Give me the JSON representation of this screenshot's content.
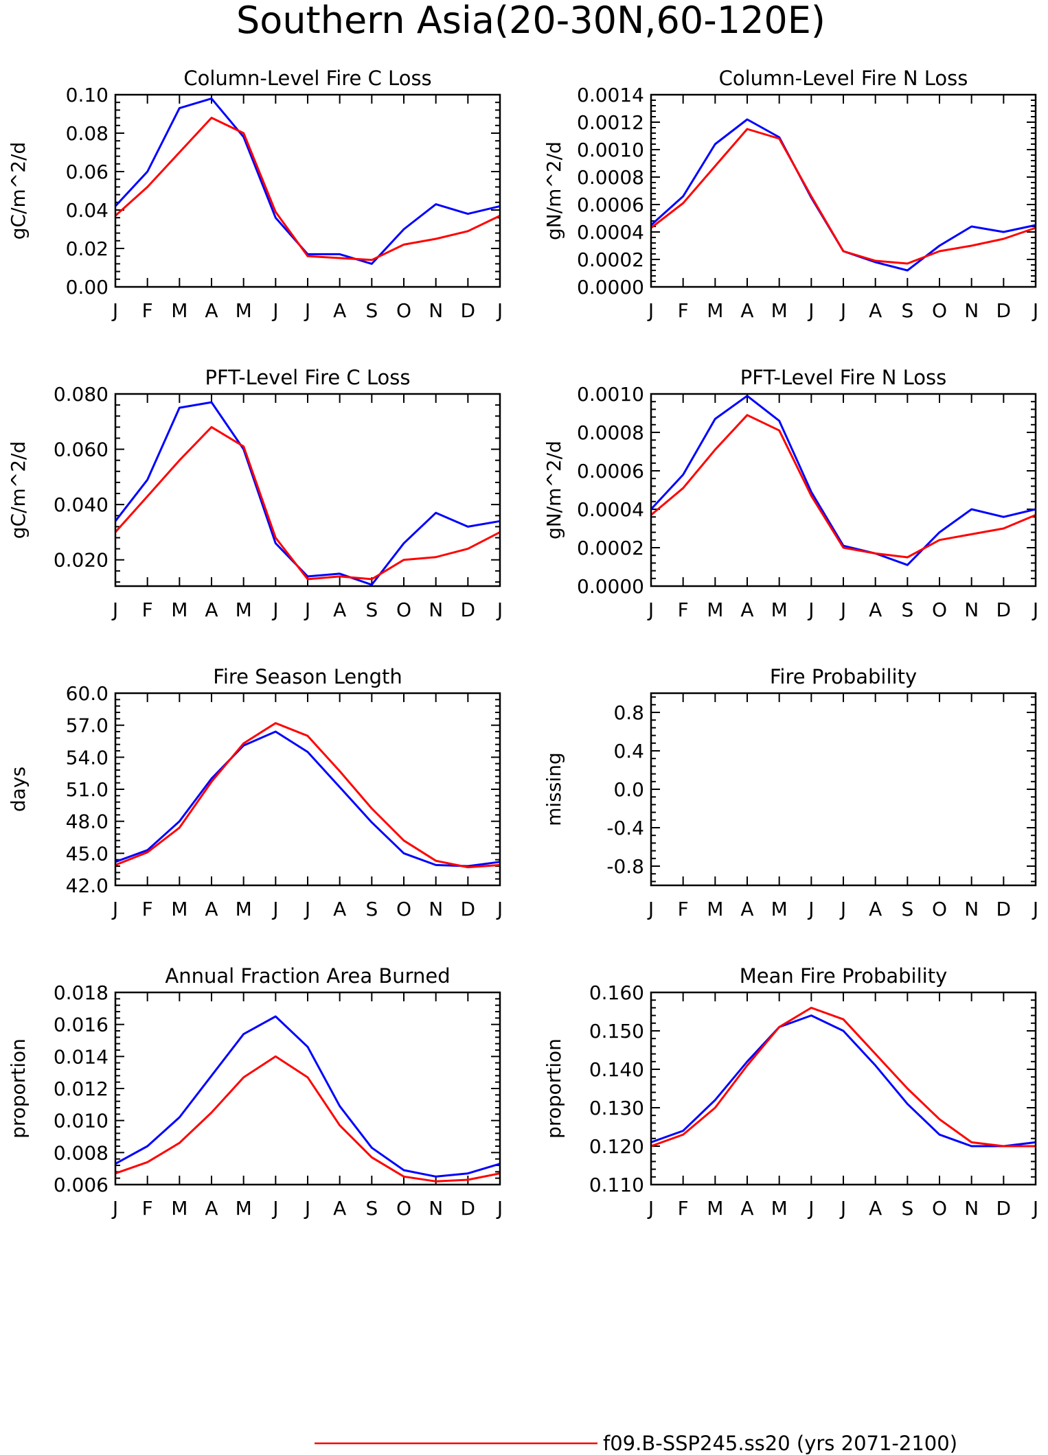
{
  "title": "Southern Asia(20-30N,60-120E)",
  "legend": [
    {
      "label": "f09.B-SSP245.ss20 (yrs 2071-2100)",
      "color": "#ff0000"
    }
  ],
  "colors": {
    "series_red": "#ff0000",
    "series_blue": "#0000ff"
  },
  "chart_data": [
    {
      "type": "line",
      "title": "Column-Level Fire C Loss",
      "ylabel": "gC/m^2/d",
      "categories": [
        "J",
        "F",
        "M",
        "A",
        "M",
        "J",
        "J",
        "A",
        "S",
        "O",
        "N",
        "D",
        "J"
      ],
      "ylim": [
        0,
        0.1
      ],
      "yticks": [
        0,
        0.02,
        0.04,
        0.06,
        0.08,
        0.1
      ],
      "ytick_labels": [
        "0.00",
        "0.02",
        "0.04",
        "0.06",
        "0.08",
        "0.10"
      ],
      "series": [
        {
          "color": "#0000ff",
          "values": [
            0.042,
            0.06,
            0.093,
            0.098,
            0.078,
            0.036,
            0.017,
            0.017,
            0.012,
            0.03,
            0.043,
            0.038,
            0.042
          ]
        },
        {
          "color": "#ff0000",
          "values": [
            0.037,
            0.052,
            0.07,
            0.088,
            0.08,
            0.039,
            0.016,
            0.015,
            0.014,
            0.022,
            0.025,
            0.029,
            0.037
          ]
        }
      ]
    },
    {
      "type": "line",
      "title": "Column-Level Fire N Loss",
      "ylabel": "gN/m^2/d",
      "categories": [
        "J",
        "F",
        "M",
        "A",
        "M",
        "J",
        "J",
        "A",
        "S",
        "O",
        "N",
        "D",
        "J"
      ],
      "ylim": [
        0,
        0.0014
      ],
      "yticks": [
        0,
        0.0002,
        0.0004,
        0.0006,
        0.0008,
        0.001,
        0.0012,
        0.0014
      ],
      "ytick_labels": [
        "0.0000",
        "0.0002",
        "0.0004",
        "0.0006",
        "0.0008",
        "0.0010",
        "0.0012",
        "0.0014"
      ],
      "series": [
        {
          "color": "#0000ff",
          "values": [
            0.00045,
            0.00066,
            0.00104,
            0.00122,
            0.00109,
            0.00065,
            0.00026,
            0.00018,
            0.00012,
            0.0003,
            0.00044,
            0.0004,
            0.00045
          ]
        },
        {
          "color": "#ff0000",
          "values": [
            0.00043,
            0.00061,
            0.00088,
            0.00115,
            0.00108,
            0.00066,
            0.00026,
            0.00019,
            0.00017,
            0.00026,
            0.0003,
            0.00035,
            0.00043
          ]
        }
      ]
    },
    {
      "type": "line",
      "title": "PFT-Level Fire C Loss",
      "ylabel": "gC/m^2/d",
      "categories": [
        "J",
        "F",
        "M",
        "A",
        "M",
        "J",
        "J",
        "A",
        "S",
        "O",
        "N",
        "D",
        "J"
      ],
      "ylim": [
        0.0105,
        0.08
      ],
      "yticks": [
        0.02,
        0.04,
        0.06,
        0.08
      ],
      "ytick_labels": [
        "0.020",
        "0.040",
        "0.060",
        "0.080"
      ],
      "series": [
        {
          "color": "#0000ff",
          "values": [
            0.034,
            0.049,
            0.075,
            0.077,
            0.06,
            0.026,
            0.014,
            0.015,
            0.011,
            0.026,
            0.037,
            0.032,
            0.034
          ]
        },
        {
          "color": "#ff0000",
          "values": [
            0.03,
            0.043,
            0.056,
            0.068,
            0.061,
            0.028,
            0.013,
            0.014,
            0.013,
            0.02,
            0.021,
            0.024,
            0.03
          ]
        }
      ]
    },
    {
      "type": "line",
      "title": "PFT-Level Fire N Loss",
      "ylabel": "gN/m^2/d",
      "categories": [
        "J",
        "F",
        "M",
        "A",
        "M",
        "J",
        "J",
        "A",
        "S",
        "O",
        "N",
        "D",
        "J"
      ],
      "ylim": [
        0,
        0.001
      ],
      "yticks": [
        0,
        0.0002,
        0.0004,
        0.0006,
        0.0008,
        0.001
      ],
      "ytick_labels": [
        "0.0000",
        "0.0002",
        "0.0004",
        "0.0006",
        "0.0008",
        "0.0010"
      ],
      "series": [
        {
          "color": "#0000ff",
          "values": [
            0.0004,
            0.00058,
            0.00087,
            0.00099,
            0.00086,
            0.00049,
            0.00021,
            0.00017,
            0.00011,
            0.00028,
            0.0004,
            0.00036,
            0.0004
          ]
        },
        {
          "color": "#ff0000",
          "values": [
            0.00037,
            0.00051,
            0.00071,
            0.00089,
            0.00081,
            0.00047,
            0.0002,
            0.00017,
            0.00015,
            0.00024,
            0.00027,
            0.0003,
            0.00037
          ]
        }
      ]
    },
    {
      "type": "line",
      "title": "Fire Season Length",
      "ylabel": "days",
      "categories": [
        "J",
        "F",
        "M",
        "A",
        "M",
        "J",
        "J",
        "A",
        "S",
        "O",
        "N",
        "D",
        "J"
      ],
      "ylim": [
        42,
        60
      ],
      "yticks": [
        42,
        45,
        48,
        51,
        54,
        57,
        60
      ],
      "ytick_labels": [
        "42.0",
        "45.0",
        "48.0",
        "51.0",
        "54.0",
        "57.0",
        "60.0"
      ],
      "series": [
        {
          "color": "#0000ff",
          "values": [
            44.2,
            45.3,
            48.0,
            52.0,
            55.1,
            56.4,
            54.5,
            51.2,
            47.9,
            45.0,
            43.9,
            43.8,
            44.2
          ]
        },
        {
          "color": "#ff0000",
          "values": [
            43.9,
            45.1,
            47.4,
            51.7,
            55.3,
            57.2,
            56.0,
            52.7,
            49.2,
            46.2,
            44.3,
            43.7,
            43.9
          ]
        }
      ]
    },
    {
      "type": "line",
      "title": "Fire Probability",
      "ylabel": "missing",
      "categories": [
        "J",
        "F",
        "M",
        "A",
        "M",
        "J",
        "J",
        "A",
        "S",
        "O",
        "N",
        "D",
        "J"
      ],
      "ylim": [
        -1,
        1
      ],
      "yticks": [
        -0.8,
        -0.4,
        0,
        0.4,
        0.8
      ],
      "ytick_labels": [
        "-0.8",
        "-0.4",
        "0.0",
        "0.4",
        "0.8"
      ],
      "series": []
    },
    {
      "type": "line",
      "title": "Annual Fraction Area Burned",
      "ylabel": "proportion",
      "categories": [
        "J",
        "F",
        "M",
        "A",
        "M",
        "J",
        "J",
        "A",
        "S",
        "O",
        "N",
        "D",
        "J"
      ],
      "ylim": [
        0.006,
        0.018
      ],
      "yticks": [
        0.006,
        0.008,
        0.01,
        0.012,
        0.014,
        0.016,
        0.018
      ],
      "ytick_labels": [
        "0.006",
        "0.008",
        "0.010",
        "0.012",
        "0.014",
        "0.016",
        "0.018"
      ],
      "series": [
        {
          "color": "#0000ff",
          "values": [
            0.0073,
            0.0084,
            0.0102,
            0.0128,
            0.0154,
            0.0165,
            0.0146,
            0.0109,
            0.0083,
            0.0069,
            0.0065,
            0.0067,
            0.0073
          ]
        },
        {
          "color": "#ff0000",
          "values": [
            0.0067,
            0.0074,
            0.0086,
            0.0105,
            0.0127,
            0.014,
            0.0127,
            0.0097,
            0.0077,
            0.0065,
            0.0062,
            0.0063,
            0.0067
          ]
        }
      ]
    },
    {
      "type": "line",
      "title": "Mean Fire Probability",
      "ylabel": "proportion",
      "categories": [
        "J",
        "F",
        "M",
        "A",
        "M",
        "J",
        "J",
        "A",
        "S",
        "O",
        "N",
        "D",
        "J"
      ],
      "ylim": [
        0.11,
        0.16
      ],
      "yticks": [
        0.11,
        0.12,
        0.13,
        0.14,
        0.15,
        0.16
      ],
      "ytick_labels": [
        "0.110",
        "0.120",
        "0.130",
        "0.140",
        "0.150",
        "0.160"
      ],
      "series": [
        {
          "color": "#0000ff",
          "values": [
            0.121,
            0.124,
            0.132,
            0.142,
            0.151,
            0.154,
            0.15,
            0.141,
            0.131,
            0.123,
            0.12,
            0.12,
            0.121
          ]
        },
        {
          "color": "#ff0000",
          "values": [
            0.12,
            0.123,
            0.13,
            0.141,
            0.151,
            0.156,
            0.153,
            0.144,
            0.135,
            0.127,
            0.121,
            0.12,
            0.12
          ]
        }
      ]
    }
  ]
}
